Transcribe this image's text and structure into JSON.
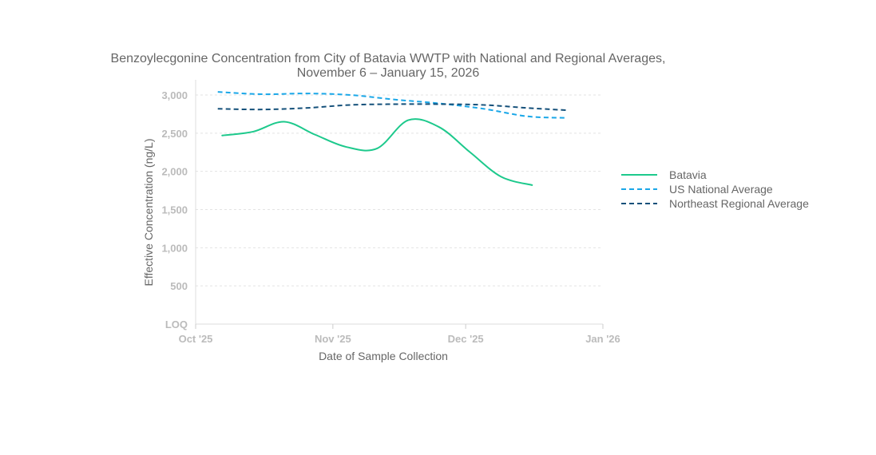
{
  "chart_data": {
    "type": "line",
    "title": "Benzoylecgonine Concentration from City of Batavia WWTP with National and Regional Averages,",
    "subtitle": "November 6 – January 15, 2026",
    "xlabel": "Date of Sample Collection",
    "ylabel": "Effective Concentration (ng/L)",
    "x_range_days": [
      0,
      92
    ],
    "ylim": [
      0,
      3100
    ],
    "x_ticks": [
      {
        "label": "Oct '25",
        "day": 0
      },
      {
        "label": "Nov '25",
        "day": 31
      },
      {
        "label": "Dec '25",
        "day": 61
      },
      {
        "label": "Jan '26",
        "day": 92
      }
    ],
    "y_ticks": [
      {
        "label": "LOQ",
        "value": 0
      },
      {
        "label": "500",
        "value": 500
      },
      {
        "label": "1,000",
        "value": 1000
      },
      {
        "label": "1,500",
        "value": 1500
      },
      {
        "label": "2,000",
        "value": 2000
      },
      {
        "label": "2,500",
        "value": 2500
      },
      {
        "label": "3,000",
        "value": 3000
      }
    ],
    "legend_position": "right",
    "series": [
      {
        "name": "Batavia",
        "color": "#1dc98c",
        "dash": "solid",
        "points": [
          {
            "day": 6,
            "value": 2470
          },
          {
            "day": 13,
            "value": 2520
          },
          {
            "day": 20,
            "value": 2650
          },
          {
            "day": 27,
            "value": 2480
          },
          {
            "day": 34,
            "value": 2320
          },
          {
            "day": 41,
            "value": 2300
          },
          {
            "day": 48,
            "value": 2670
          },
          {
            "day": 55,
            "value": 2580
          },
          {
            "day": 62,
            "value": 2250
          },
          {
            "day": 69,
            "value": 1930
          },
          {
            "day": 76,
            "value": 1820
          }
        ]
      },
      {
        "name": "US National Average",
        "color": "#1aa7e8",
        "dash": "dashed",
        "points": [
          {
            "day": 5,
            "value": 3040
          },
          {
            "day": 15,
            "value": 3010
          },
          {
            "day": 25,
            "value": 3020
          },
          {
            "day": 35,
            "value": 3000
          },
          {
            "day": 45,
            "value": 2940
          },
          {
            "day": 55,
            "value": 2890
          },
          {
            "day": 65,
            "value": 2820
          },
          {
            "day": 75,
            "value": 2720
          },
          {
            "day": 84,
            "value": 2700
          }
        ]
      },
      {
        "name": "Northeast Regional Average",
        "color": "#14507a",
        "dash": "dashed",
        "points": [
          {
            "day": 5,
            "value": 2820
          },
          {
            "day": 15,
            "value": 2810
          },
          {
            "day": 25,
            "value": 2830
          },
          {
            "day": 35,
            "value": 2870
          },
          {
            "day": 45,
            "value": 2880
          },
          {
            "day": 55,
            "value": 2880
          },
          {
            "day": 65,
            "value": 2870
          },
          {
            "day": 75,
            "value": 2830
          },
          {
            "day": 84,
            "value": 2800
          }
        ]
      }
    ]
  }
}
